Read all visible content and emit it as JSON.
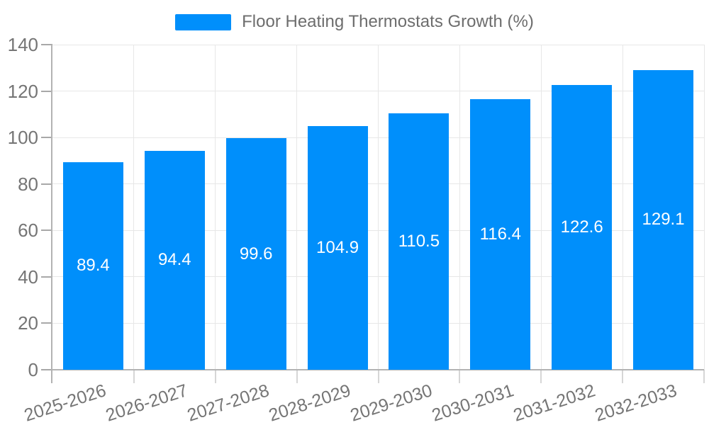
{
  "chart_data": {
    "type": "bar",
    "title": "Floor Heating Thermostats Growth (%)",
    "legend": {
      "position": "top",
      "label": "Floor Heating Thermostats Growth (%)"
    },
    "categories": [
      "2025-2026",
      "2026-2027",
      "2027-2028",
      "2028-2029",
      "2029-2030",
      "2030-2031",
      "2031-2032",
      "2032-2033"
    ],
    "values": [
      89.4,
      94.4,
      99.6,
      104.9,
      110.5,
      116.4,
      122.6,
      129.1
    ],
    "data_labels": [
      "89.4",
      "94.4",
      "99.6",
      "104.9",
      "110.5",
      "116.4",
      "122.6",
      "129.1"
    ],
    "xlabel": "",
    "ylabel": "",
    "ylim": [
      0,
      140
    ],
    "yticks": [
      0,
      20,
      40,
      60,
      80,
      100,
      120,
      140
    ],
    "grid": true,
    "bar_color": "#008FFB",
    "data_label_color": "#ffffff",
    "label_rotation_deg": -18
  }
}
